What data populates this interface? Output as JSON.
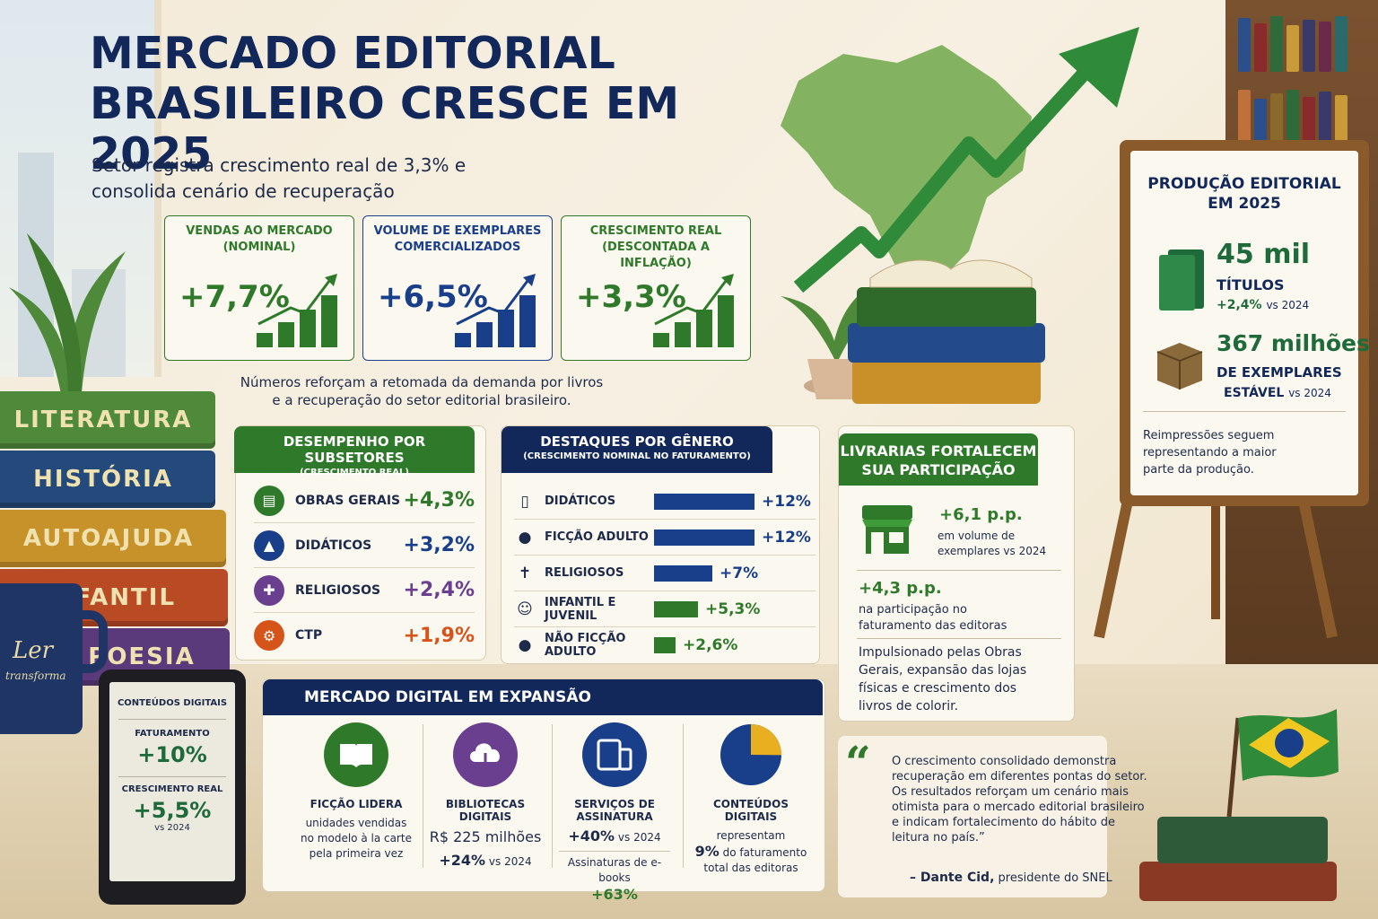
{
  "title_line1": "MERCADO EDITORIAL",
  "title_line2": "BRASILEIRO CRESCE EM 2025",
  "subtitle_line1": "Setor registra crescimento real de 3,3% e",
  "subtitle_line2": "consolida cenário de recuperação",
  "kpis": [
    {
      "label_line1": "VENDAS AO MERCADO",
      "label_line2": "(NOMINAL)",
      "value": "+7,7%",
      "color": "#2f7a2a"
    },
    {
      "label_line1": "VOLUME DE EXEMPLARES",
      "label_line2": "COMERCIALIZADOS",
      "value": "+6,5%",
      "color": "#1a3f8a"
    },
    {
      "label_line1": "CRESCIMENTO REAL",
      "label_line2": "(DESCONTADA A INFLAÇÃO)",
      "value": "+3,3%",
      "color": "#2f7a2a"
    }
  ],
  "note_line1": "Números reforçam a retomada da demanda por livros",
  "note_line2": "e a recuperação do setor editorial brasileiro.",
  "production": {
    "title_line1": "PRODUÇÃO EDITORIAL",
    "title_line2": "EM 2025",
    "titles_value": "45 mil",
    "titles_label": "TÍTULOS",
    "titles_change": "+2,4%",
    "titles_vs": "vs 2024",
    "copies_value": "367 milhões",
    "copies_label": "DE EXEMPLARES",
    "copies_status": "ESTÁVEL",
    "copies_vs": "vs 2024",
    "reprint_line1": "Reimpressões seguem",
    "reprint_line2": "representando a maior",
    "reprint_line3": "parte da produção."
  },
  "book_spines": [
    "LITERATURA",
    "HISTÓRIA",
    "AUTOAJUDA",
    "INFANTIL",
    "POESIA"
  ],
  "mug": {
    "line1": "Ler",
    "line2": "transforma"
  },
  "subsectors": {
    "title": "DESEMPENHO POR SUBSETORES",
    "subtitle": "(CRESCIMENTO REAL)",
    "items": [
      {
        "name": "OBRAS GERAIS",
        "value": "+4,3%",
        "color": "#2f7a2a",
        "icon": "book-icon"
      },
      {
        "name": "DIDÁTICOS",
        "value": "+3,2%",
        "color": "#1a3f8a",
        "icon": "graduation-cap-icon"
      },
      {
        "name": "RELIGIOSOS",
        "value": "+2,4%",
        "color": "#6a3f8f",
        "icon": "cross-icon"
      },
      {
        "name": "CTP",
        "value": "+1,9%",
        "color": "#d4541a",
        "icon": "gear-icon"
      }
    ]
  },
  "genres": {
    "title": "DESTAQUES POR GÊNERO",
    "subtitle": "(CRESCIMENTO NOMINAL NO FATURAMENTO)",
    "items": [
      {
        "name": "DIDÁTICOS",
        "value": "+12%",
        "pct": 12,
        "color": "#1a3f8a",
        "icon": "book-icon"
      },
      {
        "name": "FICÇÃO ADULTO",
        "value": "+12%",
        "pct": 12,
        "color": "#1a3f8a",
        "icon": "person-icon"
      },
      {
        "name": "RELIGIOSOS",
        "value": "+7%",
        "pct": 7,
        "color": "#1a3f8a",
        "icon": "cross-icon"
      },
      {
        "name": "INFANTIL E JUVENIL",
        "value": "+5,3%",
        "pct": 5.3,
        "color": "#2f7a2a",
        "icon": "child-face-icon"
      },
      {
        "name": "NÃO FICÇÃO ADULTO",
        "value": "+2,6%",
        "pct": 2.6,
        "color": "#2f7a2a",
        "icon": "person-icon"
      }
    ]
  },
  "bookstores": {
    "title_line1": "LIVRARIAS FORTALECEM",
    "title_line2": "SUA PARTICIPAÇÃO",
    "stat1_value": "+6,1 p.p.",
    "stat1_line1": "em volume de",
    "stat1_line2": "exemplares vs 2024",
    "stat2_value": "+4,3 p.p.",
    "stat2_line1": "na participação no",
    "stat2_line2": "faturamento das editoras",
    "drivers_line1": "Impulsionado pelas Obras",
    "drivers_line2": "Gerais, expansão das lojas",
    "drivers_line3": "físicas e crescimento dos",
    "drivers_line4": "livros de colorir."
  },
  "ereader": {
    "title": "CONTEÚDOS DIGITAIS",
    "rev_label": "FATURAMENTO",
    "rev_value": "+10%",
    "real_label": "CRESCIMENTO REAL",
    "real_value": "+5,5%",
    "vs": "vs 2024"
  },
  "digital": {
    "title": "MERCADO DIGITAL EM EXPANSÃO",
    "col1": {
      "title": "FICÇÃO LIDERA",
      "line1": "unidades vendidas",
      "line2": "no modelo à la carte",
      "line3": "pela primeira vez"
    },
    "col2": {
      "title": "BIBLIOTECAS DIGITAIS",
      "value": "R$ 225 milhões",
      "change": "+24%",
      "vs": "vs 2024"
    },
    "col3": {
      "title": "SERVIÇOS DE ASSINATURA",
      "change": "+40%",
      "vs": "vs 2024",
      "sub_label": "Assinaturas de e-books",
      "sub_value": "+63%"
    },
    "col4": {
      "title": "CONTEÚDOS DIGITAIS",
      "line1": "representam",
      "pct_text": "9%",
      "pct": 9,
      "line2": "do faturamento",
      "line3": "total das editoras"
    }
  },
  "quote": {
    "mark": "“",
    "line1": "O crescimento consolidado demonstra",
    "line2": "recuperação em diferentes pontas do setor.",
    "line3": "Os resultados reforçam um cenário mais",
    "line4": "otimista para o mercado editorial brasileiro",
    "line5": "e indicam fortalecimento do hábito de",
    "line6": "leitura no país.”",
    "author": "– Dante Cid,",
    "role": "presidente do SNEL"
  },
  "colors": {
    "navy": "#12285a",
    "green": "#2f7a2a",
    "blue": "#1a3f8a",
    "purple": "#6a3f8f",
    "orange": "#d4541a"
  }
}
